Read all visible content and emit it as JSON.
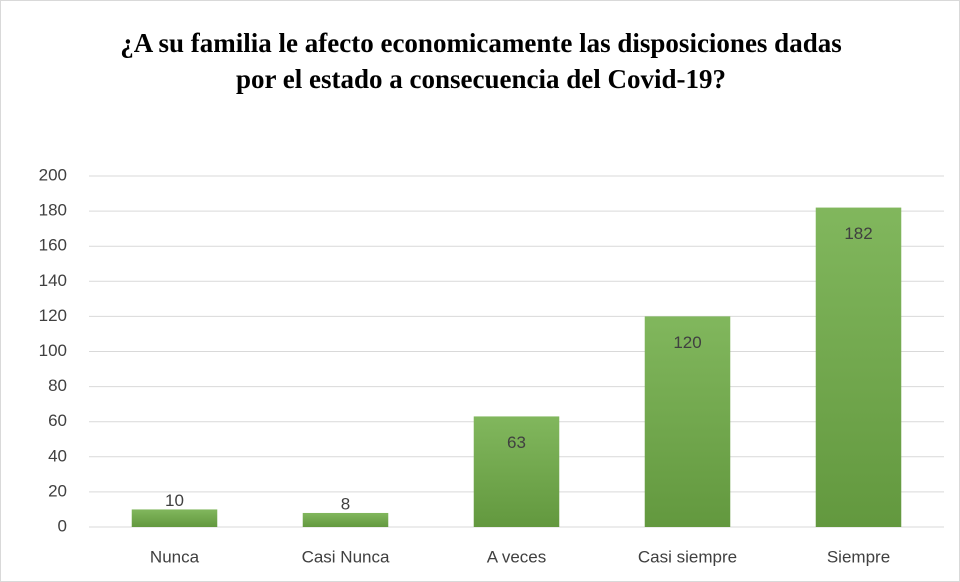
{
  "chart_data": {
    "type": "bar",
    "title": "¿A su familia le afecto economicamente las disposiciones dadas por el estado a consecuencia del Covid-19?",
    "categories": [
      "Nunca",
      "Casi Nunca",
      "A veces",
      "Casi siempre",
      "Siempre"
    ],
    "values": [
      10,
      8,
      63,
      120,
      182
    ],
    "color": "#70ad47",
    "ylim": [
      0,
      200
    ],
    "yticks": [
      0,
      20,
      40,
      60,
      80,
      100,
      120,
      140,
      160,
      180,
      200
    ],
    "grid": true,
    "data_labels": true
  }
}
